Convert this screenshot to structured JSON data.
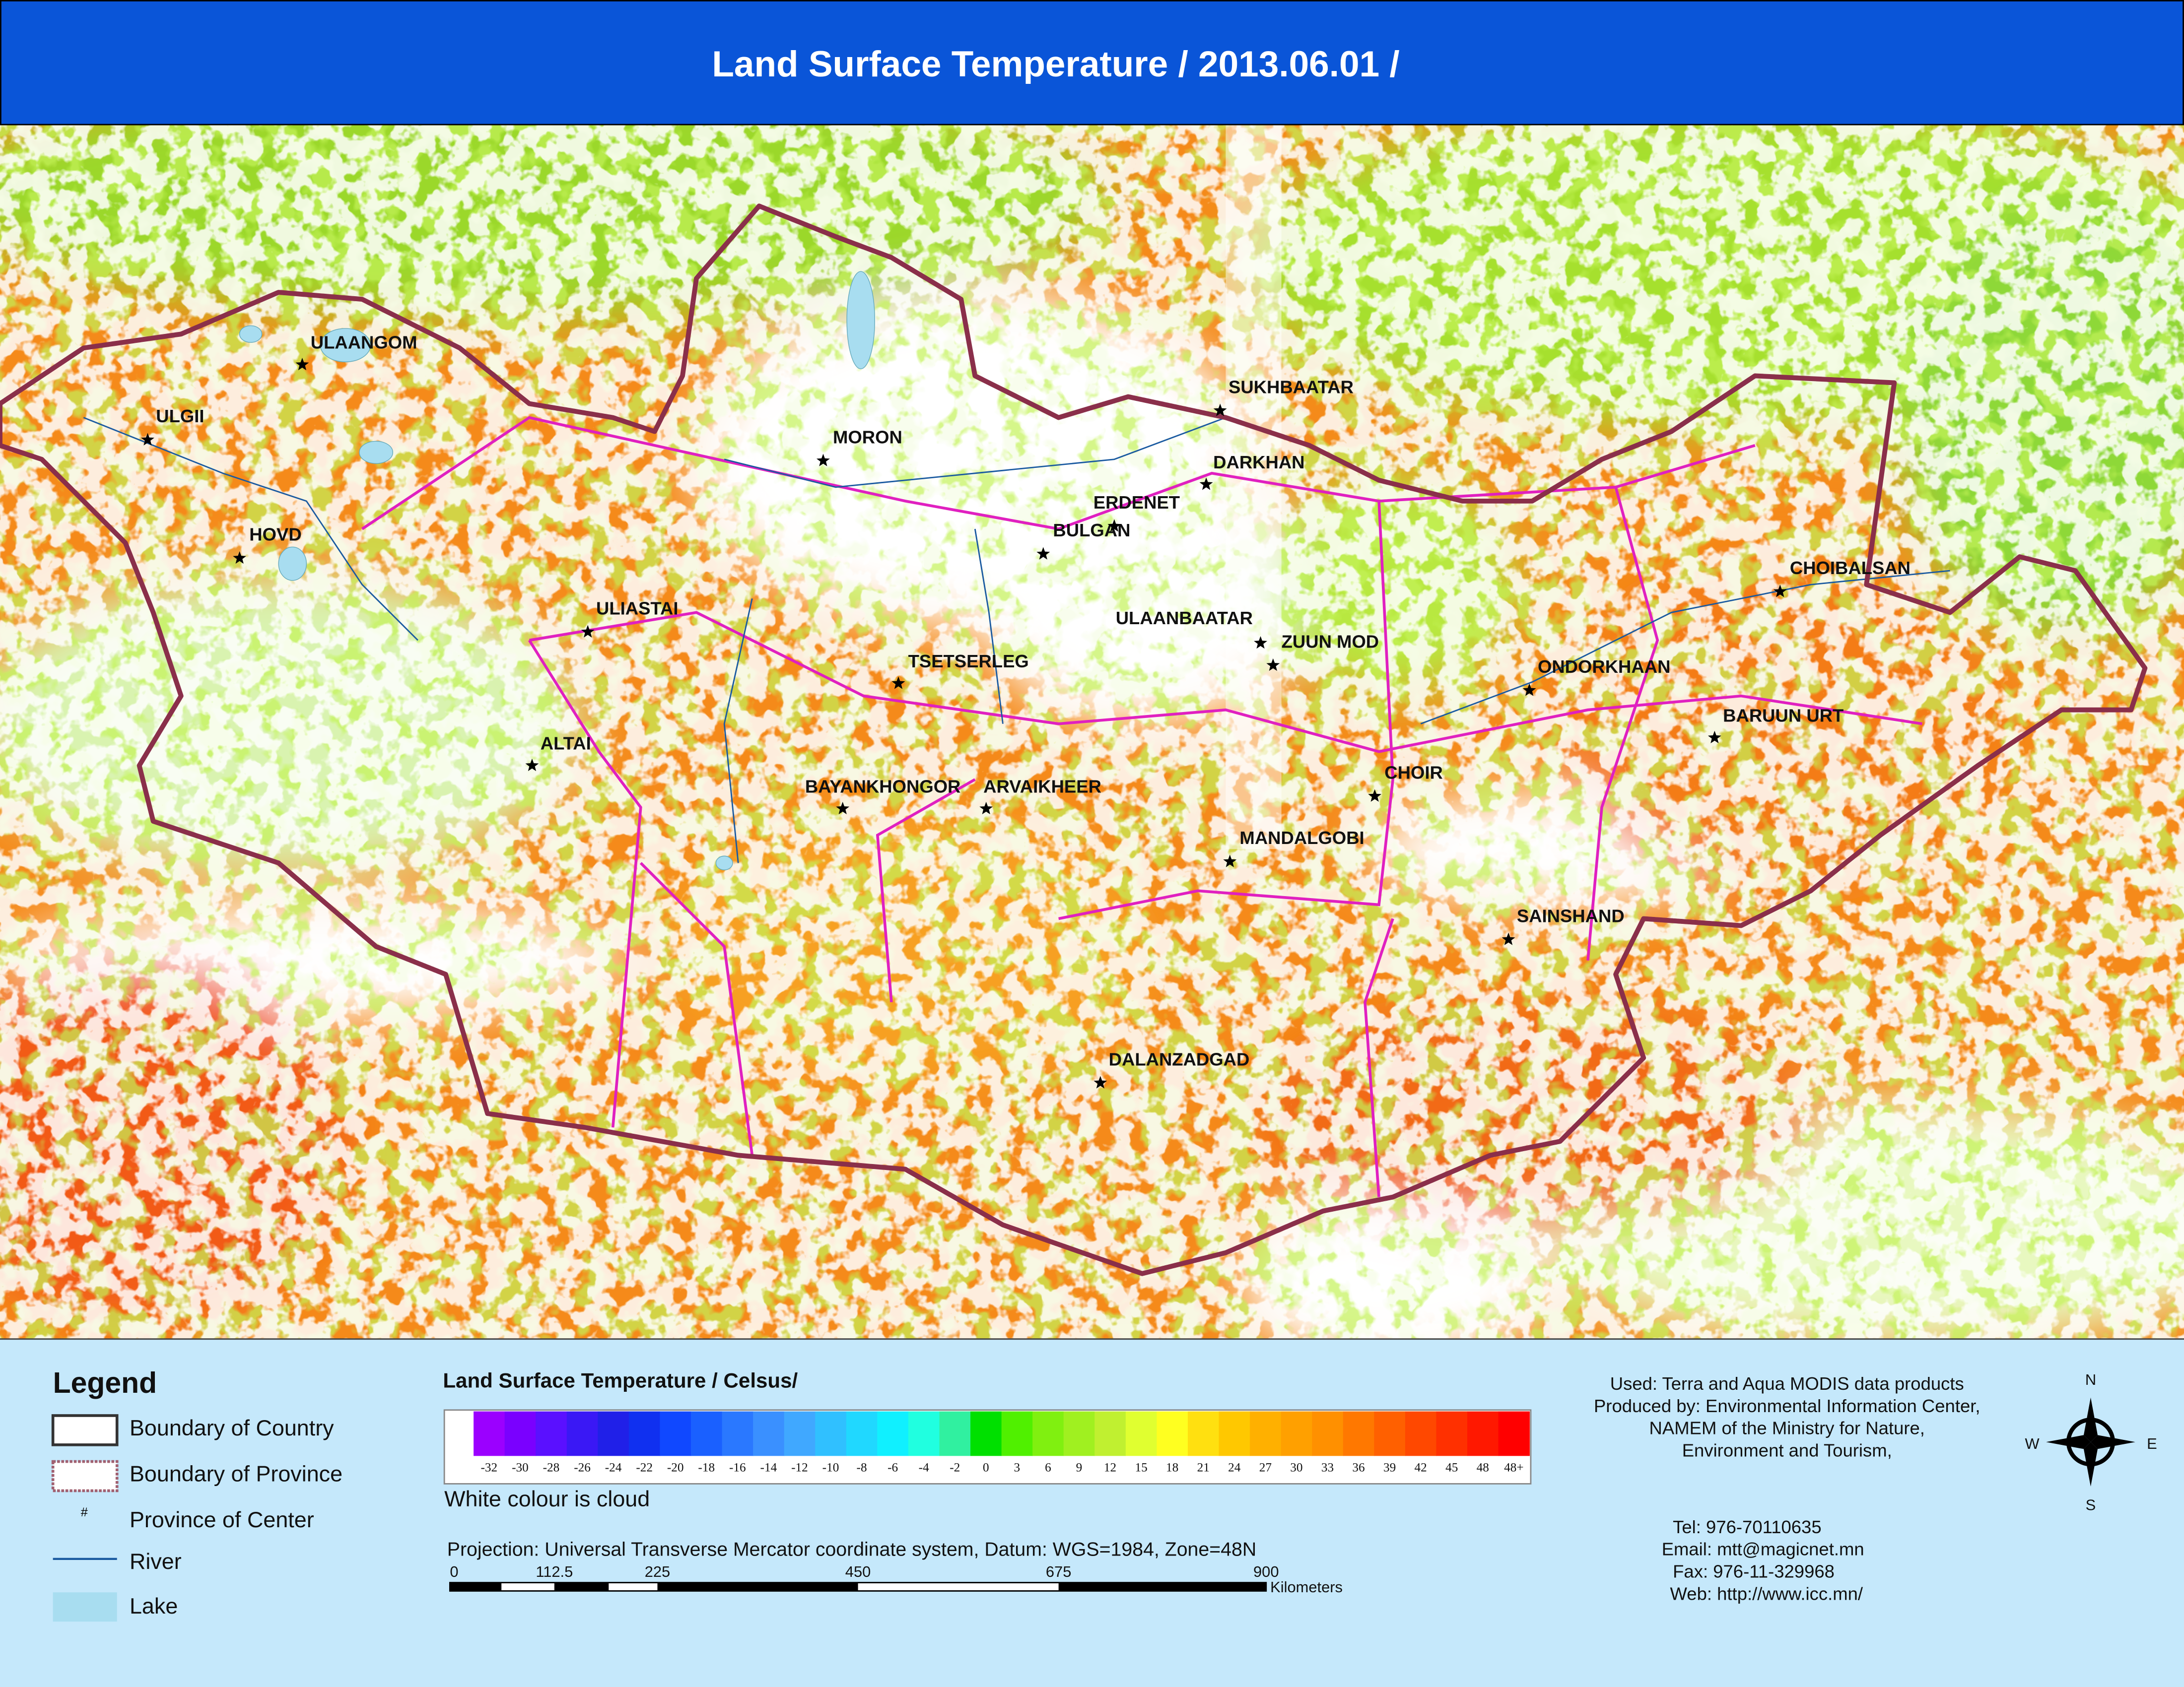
{
  "header": {
    "title": "Land Surface Temperature / 2013.06.01 /"
  },
  "map": {
    "cities": [
      "ULAANGOM",
      "ULGII",
      "HOVD",
      "ULIASTAI",
      "ALTAI",
      "MORON",
      "TSETSERLEG",
      "BAYANKHONGOR",
      "ARVAIKHEER",
      "BULGAN",
      "ERDENET",
      "DARKHAN",
      "SUKHBAATAR",
      "ULAANBAATAR",
      "ZUUN MOD",
      "CHOIR",
      "MANDALGOBI",
      "DALANZADGAD",
      "SAINSHAND",
      "ONDORKHAAN",
      "CHOIBALSAN",
      "BARUUN URT"
    ]
  },
  "legend": {
    "title": "Legend",
    "items": [
      "Boundary of Country",
      "Boundary of Province",
      "Province of Center",
      "River",
      "Lake"
    ],
    "center_symbol": "#"
  },
  "colorbar": {
    "title": "Land Surface Temperature / Celsus/",
    "labels": [
      "-32",
      "-30",
      "-28",
      "-26",
      "-24",
      "-22",
      "-20",
      "-18",
      "-16",
      "-14",
      "-12",
      "-10",
      "-8",
      "-6",
      "-4",
      "-2",
      "0",
      "3",
      "6",
      "9",
      "12",
      "15",
      "18",
      "21",
      "24",
      "27",
      "30",
      "33",
      "36",
      "39",
      "42",
      "45",
      "48",
      "48+"
    ],
    "colors": [
      "#9b00ff",
      "#7a00ff",
      "#5a10ff",
      "#3a18f5",
      "#2020e8",
      "#1030f0",
      "#1048ff",
      "#1a60ff",
      "#2a78ff",
      "#3a90ff",
      "#40a8ff",
      "#30c0ff",
      "#20d8ff",
      "#10f0ff",
      "#20ffe0",
      "#30f0a0",
      "#00e000",
      "#50f000",
      "#80f010",
      "#a0f020",
      "#c0f030",
      "#e0ff30",
      "#ffff20",
      "#ffe010",
      "#ffc800",
      "#ffb000",
      "#ffa000",
      "#ff9000",
      "#ff7800",
      "#ff6000",
      "#ff4800",
      "#ff3000",
      "#ff1800",
      "#ff0000"
    ],
    "note": "White colour is cloud"
  },
  "projection": {
    "text": "Projection: Universal Transverse Mercator coordinate system, Datum: WGS=1984, Zone=48N",
    "scale_labels": [
      "0",
      "112.5",
      "225",
      "450",
      "675",
      "900"
    ],
    "unit": "Kilometers"
  },
  "credits": {
    "lines": [
      "Used: Terra and Aqua MODIS data products",
      "Produced by: Environmental Information Center,",
      "NAMEM of the Ministry for Nature,",
      "Environment and Tourism,"
    ],
    "contacts": [
      "Tel:   976-70110635",
      "Email:     mtt@magicnet.mn",
      "Fax:  976-11-329968",
      "Web:      http://www.icc.mn/"
    ]
  },
  "compass": {
    "n": "N",
    "s": "S",
    "e": "E",
    "w": "W"
  }
}
